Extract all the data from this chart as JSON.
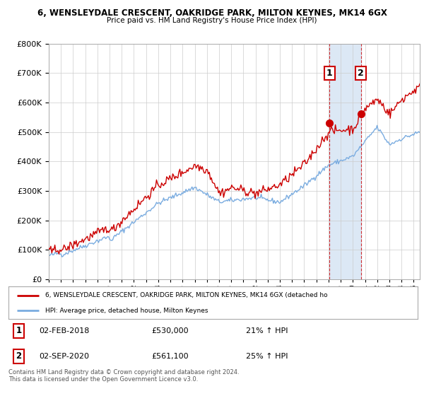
{
  "title1": "6, WENSLEYDALE CRESCENT, OAKRIDGE PARK, MILTON KEYNES, MK14 6GX",
  "title2": "Price paid vs. HM Land Registry's House Price Index (HPI)",
  "ylim": [
    0,
    800000
  ],
  "xlim_start": 1995.0,
  "xlim_end": 2025.5,
  "red_color": "#cc0000",
  "blue_color": "#7aace0",
  "sale1_year": 2018.085,
  "sale1_price": 530000,
  "sale2_year": 2020.67,
  "sale2_price": 561100,
  "legend_label_red": "6, WENSLEYDALE CRESCENT, OAKRIDGE PARK, MILTON KEYNES, MK14 6GX (detached ho",
  "legend_label_blue": "HPI: Average price, detached house, Milton Keynes",
  "footnote": "Contains HM Land Registry data © Crown copyright and database right 2024.\nThis data is licensed under the Open Government Licence v3.0.",
  "background_color": "#ffffff",
  "grid_color": "#cccccc",
  "shade_color": "#dce8f5"
}
